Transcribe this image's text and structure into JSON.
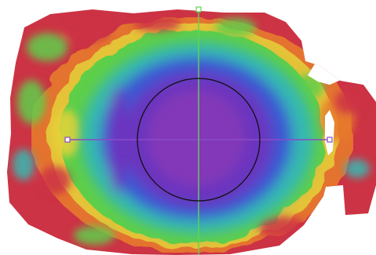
{
  "map": {
    "colors": {
      "background": "#ffffff",
      "outer": "#cc3344",
      "orange": "#e77a2c",
      "yellow": "#e6d23a",
      "green": "#5fcf4a",
      "cyan": "#35b8b2",
      "blue": "#3b56d3",
      "violet": "#6a35bf",
      "inner_violet": "#8238b8",
      "purple_line": "#8a4bc6",
      "green_line": "#63d354",
      "circle": "#111111"
    }
  }
}
